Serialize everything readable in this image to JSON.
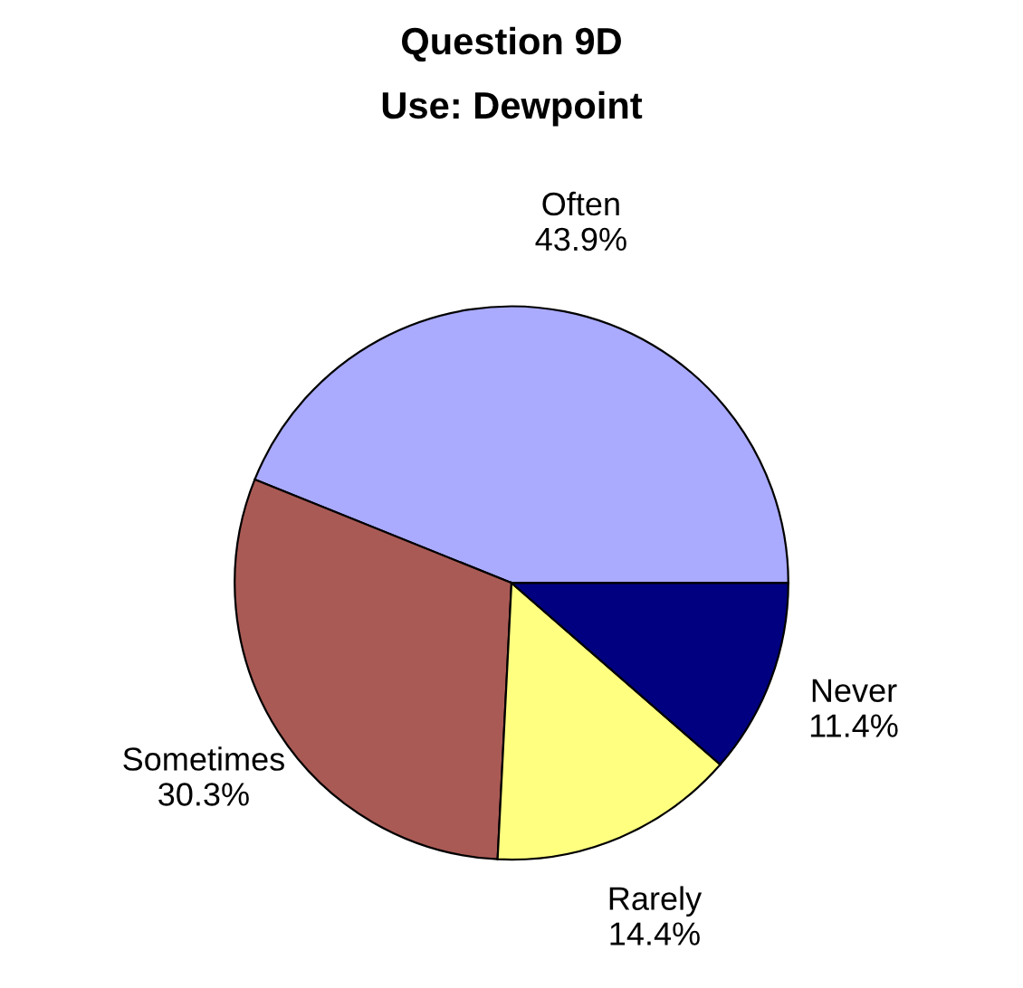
{
  "chart_data": {
    "type": "pie",
    "title": "Question 9D",
    "subtitle": "Use: Dewpoint",
    "categories": [
      "Often",
      "Sometimes",
      "Rarely",
      "Never"
    ],
    "values": [
      43.9,
      30.3,
      14.4,
      11.4
    ],
    "value_labels": [
      "43.9%",
      "30.3%",
      "14.4%",
      "11.4%"
    ],
    "colors": [
      "#aaaaff",
      "#aa5a55",
      "#ffff80",
      "#000080"
    ],
    "legend": false
  }
}
